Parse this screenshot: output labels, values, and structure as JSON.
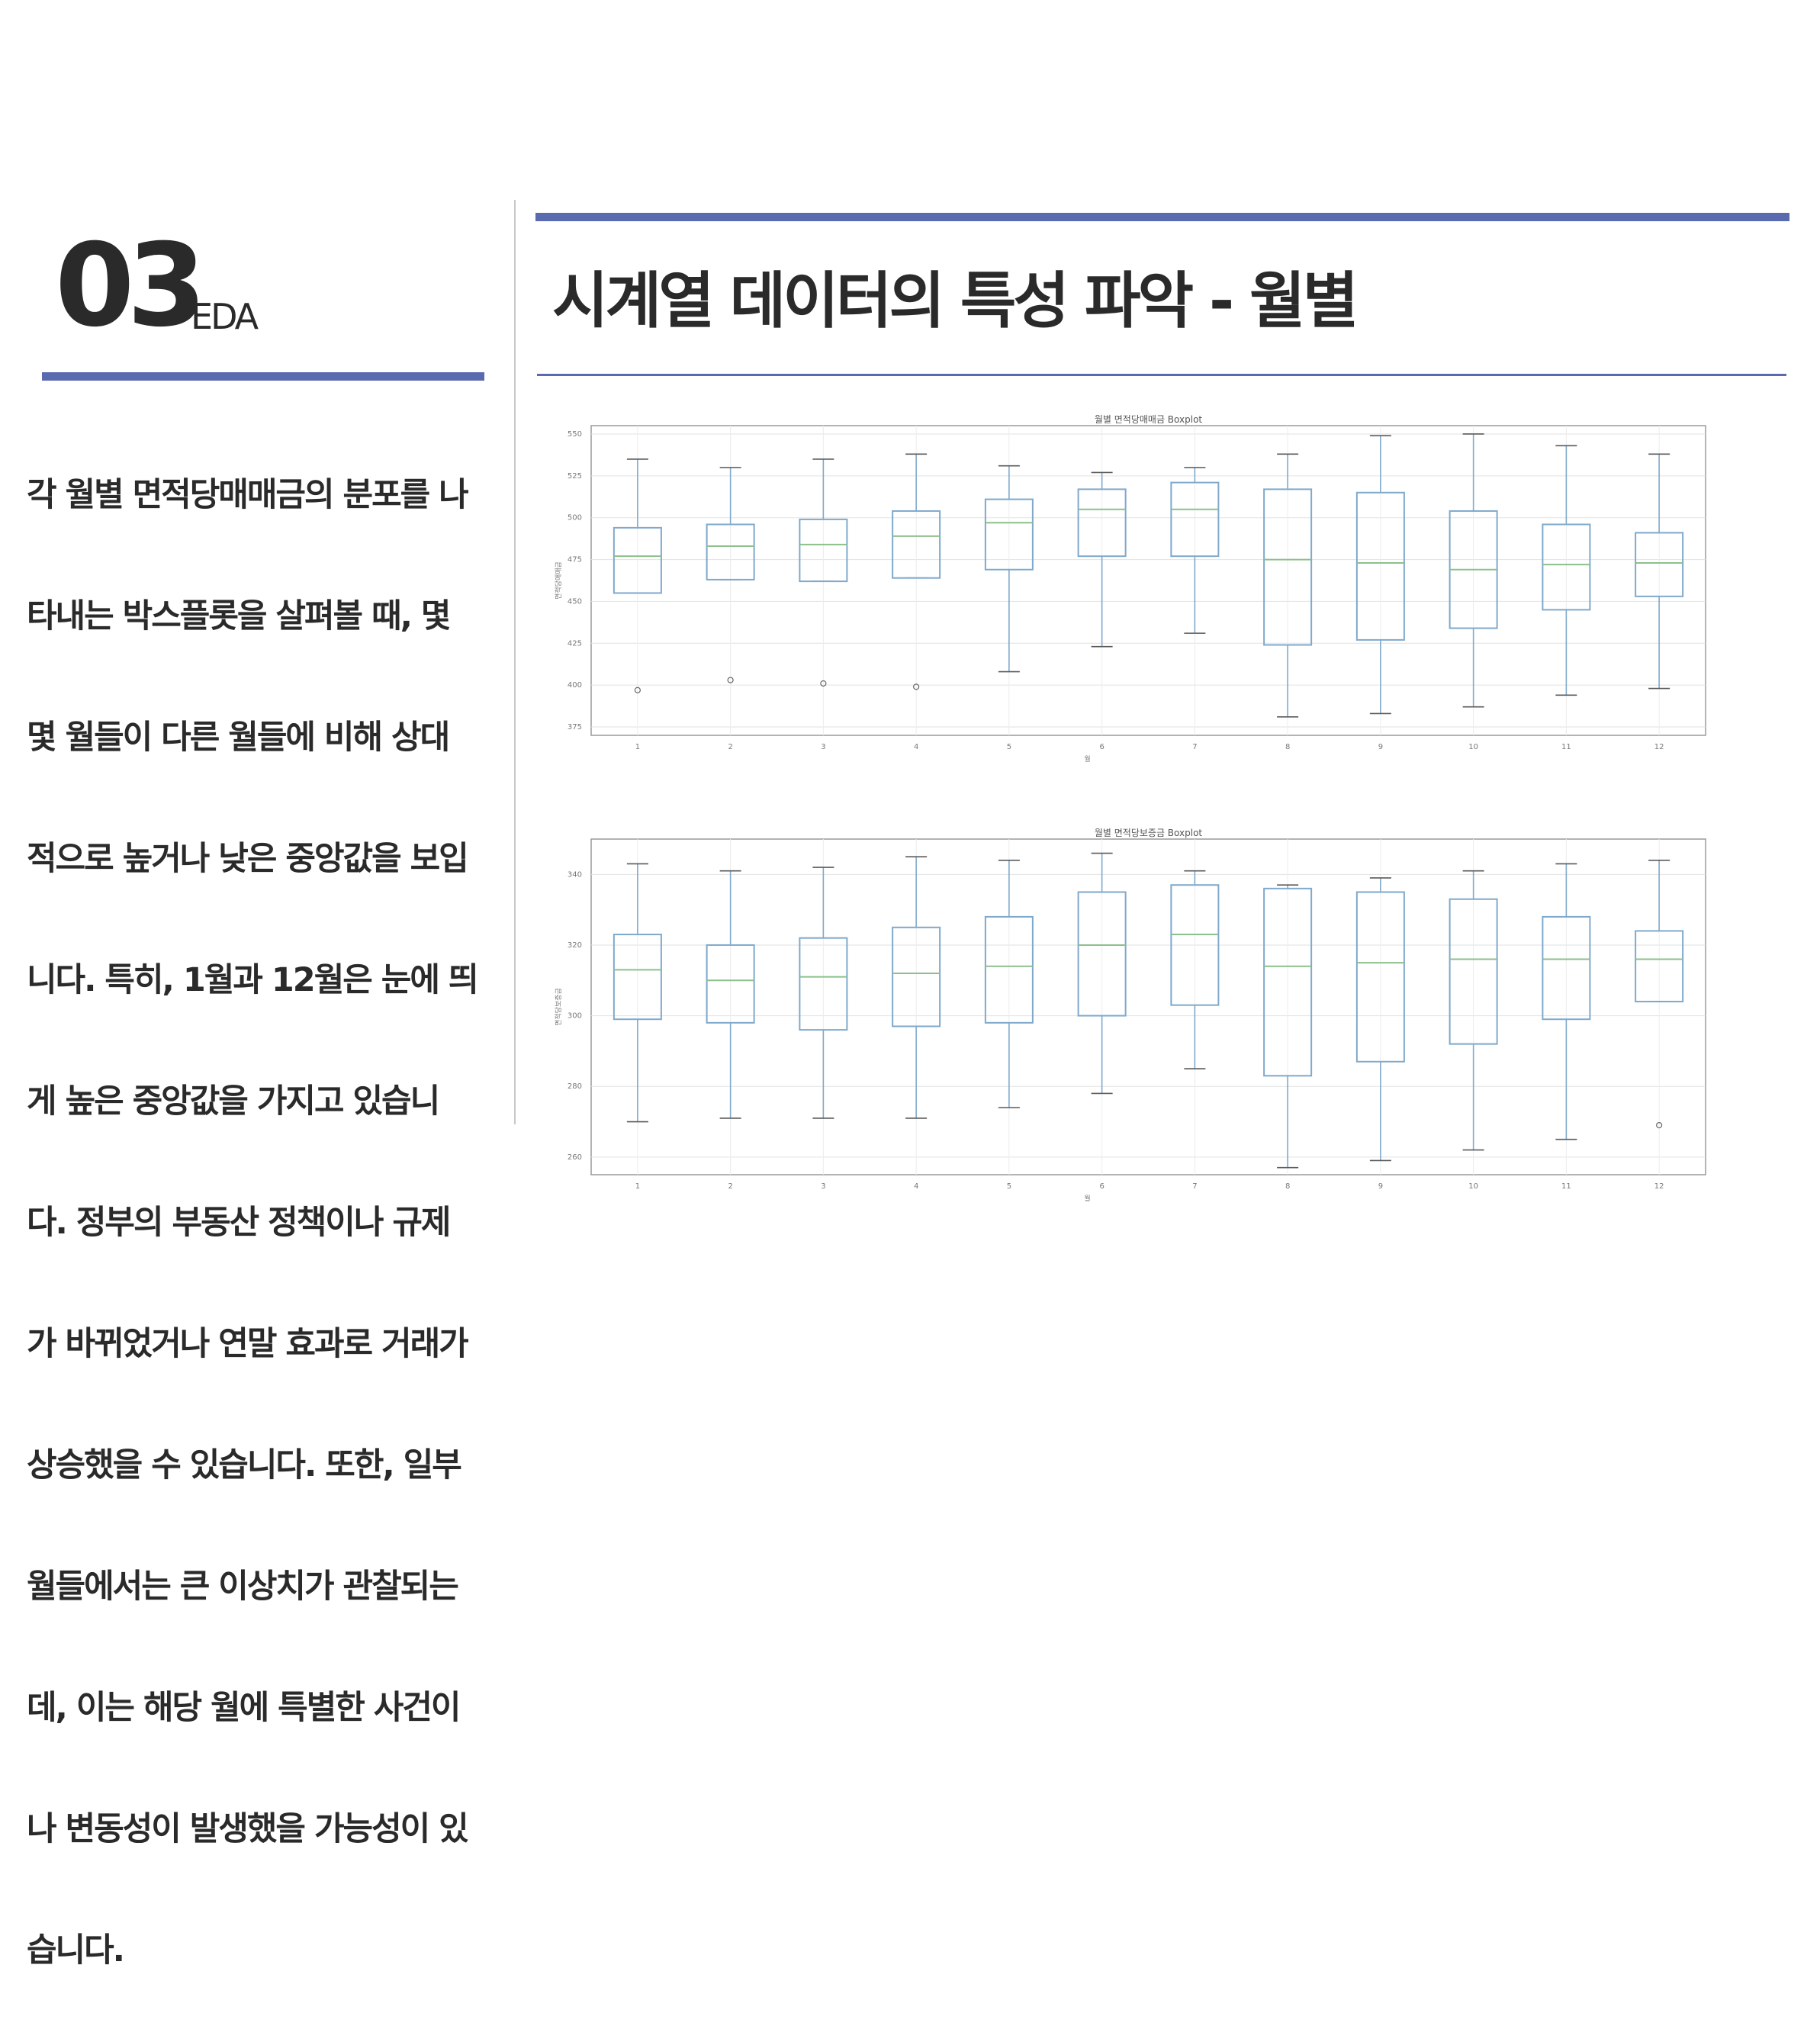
{
  "section": {
    "number": "03",
    "label": "EDA"
  },
  "title": "시계열 데이터의 특성 파악  - 월별",
  "body_lines": [
    "각 월별 면적당매매금의 분포를 나",
    "타내는 박스플롯을 살펴볼 때, 몇",
    "몇 월들이 다른 월들에 비해 상대",
    "적으로 높거나 낮은 중앙값을 보입",
    "니다. 특히, 1월과 12월은 눈에 띄",
    "게 높은 중앙값을 가지고 있습니",
    "다.  정부의 부동산 정책이나 규제",
    "가 바뀌었거나 연말 효과로 거래가",
    "상승했을 수 있습니다.  또한, 일부",
    "월들에서는 큰 이상치가 관찰되는",
    "데, 이는 해당 월에 특별한 사건이",
    "나 변동성이 발생했을 가능성이 있",
    "습니다."
  ],
  "colors": {
    "accent": "#5a6aae",
    "box": "#7fa9cc",
    "median": "#8cc08c",
    "whisker": "#5a5a5a"
  },
  "chart_data": [
    {
      "type": "box",
      "title": "월별 면적당매매금 Boxplot",
      "xlabel": "월",
      "ylabel": "면적당매매금",
      "categories": [
        "1",
        "2",
        "3",
        "4",
        "5",
        "6",
        "7",
        "8",
        "9",
        "10",
        "11",
        "12"
      ],
      "ylim": [
        370,
        555
      ],
      "yticks": [
        375,
        400,
        425,
        450,
        475,
        500,
        525,
        550
      ],
      "grid": true,
      "boxes": [
        {
          "whislo": 455,
          "q1": 455,
          "med": 477,
          "q3": 494,
          "whishi": 535,
          "fliers": [
            397
          ]
        },
        {
          "whislo": 463,
          "q1": 463,
          "med": 483,
          "q3": 496,
          "whishi": 530,
          "fliers": [
            403
          ]
        },
        {
          "whislo": 462,
          "q1": 462,
          "med": 484,
          "q3": 499,
          "whishi": 535,
          "fliers": [
            401
          ]
        },
        {
          "whislo": 464,
          "q1": 464,
          "med": 489,
          "q3": 504,
          "whishi": 538,
          "fliers": [
            399
          ]
        },
        {
          "whislo": 408,
          "q1": 469,
          "med": 497,
          "q3": 511,
          "whishi": 531,
          "fliers": []
        },
        {
          "whislo": 423,
          "q1": 477,
          "med": 505,
          "q3": 517,
          "whishi": 527,
          "fliers": []
        },
        {
          "whislo": 431,
          "q1": 477,
          "med": 505,
          "q3": 521,
          "whishi": 530,
          "fliers": []
        },
        {
          "whislo": 381,
          "q1": 424,
          "med": 475,
          "q3": 517,
          "whishi": 538,
          "fliers": []
        },
        {
          "whislo": 383,
          "q1": 427,
          "med": 473,
          "q3": 515,
          "whishi": 549,
          "fliers": []
        },
        {
          "whislo": 387,
          "q1": 434,
          "med": 469,
          "q3": 504,
          "whishi": 550,
          "fliers": []
        },
        {
          "whislo": 394,
          "q1": 445,
          "med": 472,
          "q3": 496,
          "whishi": 543,
          "fliers": []
        },
        {
          "whislo": 398,
          "q1": 453,
          "med": 473,
          "q3": 491,
          "whishi": 538,
          "fliers": []
        }
      ]
    },
    {
      "type": "box",
      "title": "월별 면적당보증금 Boxplot",
      "xlabel": "월",
      "ylabel": "면적당보증금",
      "categories": [
        "1",
        "2",
        "3",
        "4",
        "5",
        "6",
        "7",
        "8",
        "9",
        "10",
        "11",
        "12"
      ],
      "ylim": [
        255,
        350
      ],
      "yticks": [
        260,
        280,
        300,
        320,
        340
      ],
      "grid": true,
      "boxes": [
        {
          "whislo": 270,
          "q1": 299,
          "med": 313,
          "q3": 323,
          "whishi": 343,
          "fliers": []
        },
        {
          "whislo": 271,
          "q1": 298,
          "med": 310,
          "q3": 320,
          "whishi": 341,
          "fliers": []
        },
        {
          "whislo": 271,
          "q1": 296,
          "med": 311,
          "q3": 322,
          "whishi": 342,
          "fliers": []
        },
        {
          "whislo": 271,
          "q1": 297,
          "med": 312,
          "q3": 325,
          "whishi": 345,
          "fliers": []
        },
        {
          "whislo": 274,
          "q1": 298,
          "med": 314,
          "q3": 328,
          "whishi": 344,
          "fliers": []
        },
        {
          "whislo": 278,
          "q1": 300,
          "med": 320,
          "q3": 335,
          "whishi": 346,
          "fliers": []
        },
        {
          "whislo": 285,
          "q1": 303,
          "med": 323,
          "q3": 337,
          "whishi": 341,
          "fliers": []
        },
        {
          "whislo": 257,
          "q1": 283,
          "med": 314,
          "q3": 336,
          "whishi": 337,
          "fliers": []
        },
        {
          "whislo": 259,
          "q1": 287,
          "med": 315,
          "q3": 335,
          "whishi": 339,
          "fliers": []
        },
        {
          "whislo": 262,
          "q1": 292,
          "med": 316,
          "q3": 333,
          "whishi": 341,
          "fliers": []
        },
        {
          "whislo": 265,
          "q1": 299,
          "med": 316,
          "q3": 328,
          "whishi": 343,
          "fliers": []
        },
        {
          "whislo": 304,
          "q1": 304,
          "med": 316,
          "q3": 324,
          "whishi": 344,
          "fliers": [
            269
          ]
        }
      ]
    }
  ]
}
